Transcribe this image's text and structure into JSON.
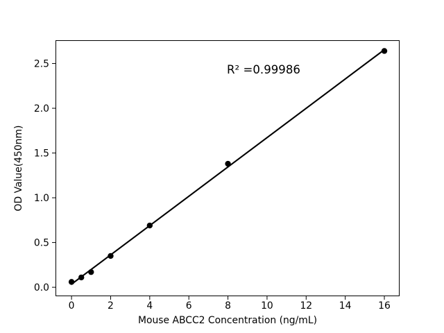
{
  "chart_data": {
    "type": "scatter",
    "title": "",
    "xlabel": "Mouse ABCC2 Concentration (ng/mL)",
    "ylabel": "OD Value(450nm)",
    "x": [
      0,
      0.5,
      1,
      2,
      4,
      8,
      16
    ],
    "y": [
      0.06,
      0.11,
      0.17,
      0.35,
      0.69,
      1.38,
      2.64
    ],
    "trendline": {
      "type": "linear_fit",
      "x_start": 0,
      "x_end": 16
    },
    "annotation": {
      "text": "R² =0.99986",
      "r_squared": 0.99986
    },
    "xticks": {
      "values": [
        0,
        2,
        4,
        6,
        8,
        10,
        12,
        14,
        16
      ],
      "labels": [
        "0",
        "2",
        "4",
        "6",
        "8",
        "10",
        "12",
        "14",
        "16"
      ]
    },
    "yticks": {
      "values": [
        0.0,
        0.5,
        1.0,
        1.5,
        2.0,
        2.5
      ],
      "labels": [
        "0.0",
        "0.5",
        "1.0",
        "1.5",
        "2.0",
        "2.5"
      ]
    },
    "xlim": [
      -0.82,
      16.78
    ],
    "ylim": [
      -0.1,
      2.76
    ],
    "grid": false,
    "legend_position": "none",
    "colors": {
      "marker": "#000000",
      "line": "#000000",
      "axis": "#000000",
      "background": "#ffffff"
    }
  }
}
